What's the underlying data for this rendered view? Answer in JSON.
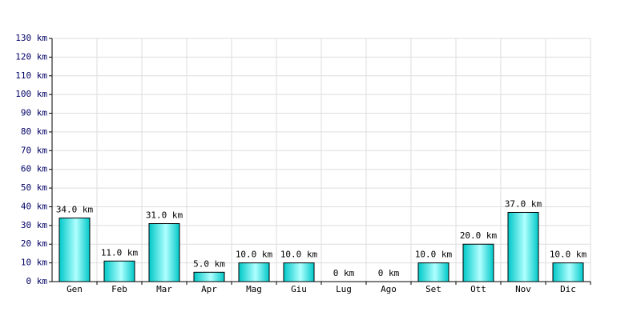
{
  "chart_data": {
    "type": "bar",
    "categories": [
      "Gen",
      "Feb",
      "Mar",
      "Apr",
      "Mag",
      "Giu",
      "Lug",
      "Ago",
      "Set",
      "Ott",
      "Nov",
      "Dic"
    ],
    "values": [
      34,
      11,
      31,
      5,
      10,
      10,
      0,
      0,
      10,
      20,
      37,
      10
    ],
    "value_labels": [
      "34.0 km",
      "11.0 km",
      "31.0 km",
      "5.0 km",
      "10.0 km",
      "10.0 km",
      "0 km",
      "0 km",
      "10.0 km",
      "20.0 km",
      "37.0 km",
      "10.0 km"
    ],
    "color": "#00c8c8",
    "ylim": [
      0,
      130
    ],
    "yticks": [
      {
        "value": 0,
        "label": "0 km"
      },
      {
        "value": 10,
        "label": "10 km"
      },
      {
        "value": 20,
        "label": "20 km"
      },
      {
        "value": 30,
        "label": "30 km"
      },
      {
        "value": 40,
        "label": "40 km"
      },
      {
        "value": 50,
        "label": "50 km"
      },
      {
        "value": 60,
        "label": "60 km"
      },
      {
        "value": 70,
        "label": "70 km"
      },
      {
        "value": 80,
        "label": "80 km"
      },
      {
        "value": 90,
        "label": "90 km"
      },
      {
        "value": 100,
        "label": "100 km"
      },
      {
        "value": 110,
        "label": "110 km"
      },
      {
        "value": 120,
        "label": "120 km"
      },
      {
        "value": 130,
        "label": "130 km"
      }
    ],
    "grid": true
  }
}
